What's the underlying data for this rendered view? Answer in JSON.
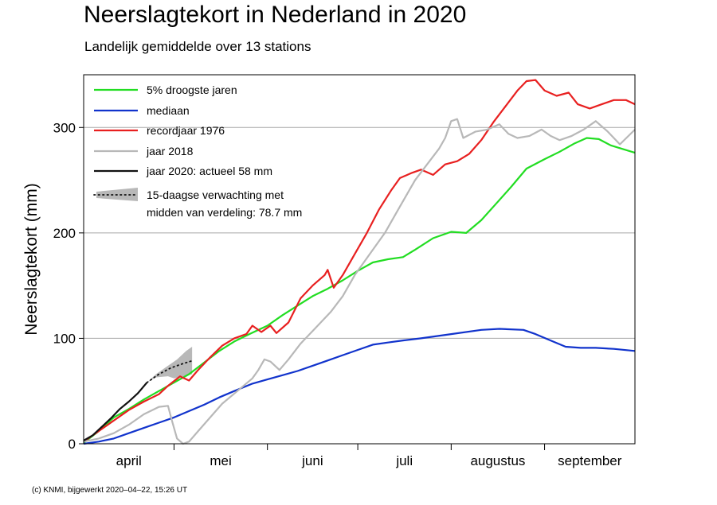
{
  "title": "Neerslagtekort in Nederland in 2020",
  "subtitle": "Landelijk gemiddelde over 13 stations",
  "credit": "(c) KNMI, bijgewerkt 2020–04–22, 15:26 UT",
  "chart_data": {
    "type": "line",
    "ylabel": "Neerslagtekort (mm)",
    "xlabel": "",
    "xlim": [
      0,
      183
    ],
    "ylim": [
      0,
      350
    ],
    "yticks": [
      0,
      100,
      200,
      300
    ],
    "month_labels": [
      {
        "label": "april",
        "center": 15
      },
      {
        "label": "mei",
        "center": 45.5
      },
      {
        "label": "juni",
        "center": 76
      },
      {
        "label": "juli",
        "center": 106.5
      },
      {
        "label": "augustus",
        "center": 137.5
      },
      {
        "label": "september",
        "center": 168
      }
    ],
    "month_boundaries": [
      30,
      61,
      91,
      122,
      153
    ],
    "grid": true,
    "legend_position": "top-left",
    "series": [
      {
        "name": "5% droogste jaren",
        "color": "#22dd22",
        "points": [
          [
            0,
            1
          ],
          [
            5,
            12
          ],
          [
            10,
            25
          ],
          [
            15,
            33
          ],
          [
            20,
            42
          ],
          [
            25,
            50
          ],
          [
            30,
            58
          ],
          [
            35,
            66
          ],
          [
            40,
            77
          ],
          [
            45,
            88
          ],
          [
            50,
            97
          ],
          [
            55,
            104
          ],
          [
            61,
            112
          ],
          [
            66,
            122
          ],
          [
            71,
            131
          ],
          [
            76,
            140
          ],
          [
            81,
            147
          ],
          [
            86,
            155
          ],
          [
            91,
            164
          ],
          [
            96,
            172
          ],
          [
            101,
            175
          ],
          [
            106,
            177
          ],
          [
            110,
            184
          ],
          [
            116,
            195
          ],
          [
            122,
            201
          ],
          [
            127,
            200
          ],
          [
            132,
            212
          ],
          [
            137,
            228
          ],
          [
            142,
            244
          ],
          [
            147,
            261
          ],
          [
            153,
            270
          ],
          [
            158,
            277
          ],
          [
            163,
            285
          ],
          [
            167,
            290
          ],
          [
            171,
            289
          ],
          [
            175,
            283
          ],
          [
            183,
            276
          ]
        ]
      },
      {
        "name": "mediaan",
        "color": "#1133cc",
        "points": [
          [
            0,
            0
          ],
          [
            5,
            2
          ],
          [
            10,
            5
          ],
          [
            15,
            10
          ],
          [
            20,
            15
          ],
          [
            25,
            20
          ],
          [
            30,
            25
          ],
          [
            35,
            31
          ],
          [
            40,
            37
          ],
          [
            45,
            44
          ],
          [
            50,
            50
          ],
          [
            56,
            57
          ],
          [
            61,
            61
          ],
          [
            66,
            65
          ],
          [
            71,
            69
          ],
          [
            76,
            74
          ],
          [
            81,
            79
          ],
          [
            86,
            84
          ],
          [
            91,
            89
          ],
          [
            96,
            94
          ],
          [
            101,
            96
          ],
          [
            106,
            98
          ],
          [
            112,
            100
          ],
          [
            122,
            104
          ],
          [
            132,
            108
          ],
          [
            138,
            109
          ],
          [
            146,
            108
          ],
          [
            150,
            104
          ],
          [
            155,
            98
          ],
          [
            160,
            92
          ],
          [
            165,
            91
          ],
          [
            170,
            91
          ],
          [
            176,
            90
          ],
          [
            183,
            88
          ]
        ]
      },
      {
        "name": "recordjaar 1976",
        "color": "#e82020",
        "points": [
          [
            0,
            2
          ],
          [
            5,
            12
          ],
          [
            10,
            22
          ],
          [
            15,
            32
          ],
          [
            20,
            40
          ],
          [
            25,
            47
          ],
          [
            28,
            55
          ],
          [
            32,
            64
          ],
          [
            35,
            60
          ],
          [
            38,
            70
          ],
          [
            42,
            82
          ],
          [
            46,
            93
          ],
          [
            50,
            100
          ],
          [
            54,
            104
          ],
          [
            56,
            112
          ],
          [
            59,
            106
          ],
          [
            62,
            112
          ],
          [
            64,
            105
          ],
          [
            68,
            115
          ],
          [
            72,
            138
          ],
          [
            76,
            150
          ],
          [
            80,
            160
          ],
          [
            81,
            165
          ],
          [
            83,
            148
          ],
          [
            86,
            160
          ],
          [
            90,
            180
          ],
          [
            94,
            200
          ],
          [
            98,
            222
          ],
          [
            102,
            240
          ],
          [
            105,
            252
          ],
          [
            109,
            257
          ],
          [
            112,
            260
          ],
          [
            116,
            255
          ],
          [
            120,
            265
          ],
          [
            124,
            268
          ],
          [
            128,
            275
          ],
          [
            132,
            288
          ],
          [
            136,
            305
          ],
          [
            140,
            320
          ],
          [
            144,
            335
          ],
          [
            147,
            344
          ],
          [
            150,
            345
          ],
          [
            153,
            335
          ],
          [
            157,
            330
          ],
          [
            161,
            333
          ],
          [
            164,
            322
          ],
          [
            168,
            318
          ],
          [
            172,
            322
          ],
          [
            176,
            326
          ],
          [
            180,
            326
          ],
          [
            183,
            322
          ]
        ]
      },
      {
        "name": "jaar 2018",
        "color": "#b8b8b8",
        "points": [
          [
            0,
            2
          ],
          [
            5,
            5
          ],
          [
            10,
            10
          ],
          [
            15,
            18
          ],
          [
            20,
            28
          ],
          [
            25,
            35
          ],
          [
            28,
            36
          ],
          [
            29,
            25
          ],
          [
            31,
            5
          ],
          [
            33,
            0
          ],
          [
            35,
            2
          ],
          [
            38,
            12
          ],
          [
            42,
            25
          ],
          [
            46,
            38
          ],
          [
            51,
            50
          ],
          [
            56,
            62
          ],
          [
            58,
            70
          ],
          [
            60,
            80
          ],
          [
            62,
            78
          ],
          [
            65,
            70
          ],
          [
            68,
            80
          ],
          [
            72,
            95
          ],
          [
            77,
            110
          ],
          [
            82,
            125
          ],
          [
            86,
            140
          ],
          [
            90,
            160
          ],
          [
            95,
            180
          ],
          [
            100,
            200
          ],
          [
            105,
            225
          ],
          [
            110,
            250
          ],
          [
            114,
            265
          ],
          [
            118,
            280
          ],
          [
            120,
            290
          ],
          [
            122,
            306
          ],
          [
            124,
            308
          ],
          [
            126,
            290
          ],
          [
            130,
            296
          ],
          [
            134,
            298
          ],
          [
            138,
            303
          ],
          [
            141,
            294
          ],
          [
            144,
            290
          ],
          [
            148,
            292
          ],
          [
            152,
            298
          ],
          [
            155,
            292
          ],
          [
            158,
            288
          ],
          [
            162,
            292
          ],
          [
            166,
            298
          ],
          [
            170,
            306
          ],
          [
            174,
            296
          ],
          [
            178,
            284
          ],
          [
            183,
            298
          ]
        ]
      },
      {
        "name": "jaar 2020: actueel 58 mm",
        "color": "#111111",
        "points": [
          [
            0,
            3
          ],
          [
            3,
            8
          ],
          [
            6,
            16
          ],
          [
            9,
            24
          ],
          [
            12,
            33
          ],
          [
            15,
            40
          ],
          [
            18,
            48
          ],
          [
            21,
            58
          ]
        ]
      }
    ],
    "forecast": {
      "name": "15-daagse verwachting met",
      "name_line2": "midden van verdeling: 78.7 mm",
      "median": [
        [
          21,
          58
        ],
        [
          25,
          66
        ],
        [
          29,
          72
        ],
        [
          33,
          76
        ],
        [
          36,
          78.7
        ]
      ],
      "lower": [
        [
          21,
          58
        ],
        [
          24,
          63
        ],
        [
          28,
          64
        ],
        [
          30,
          62
        ],
        [
          33,
          64
        ],
        [
          36,
          66
        ]
      ],
      "upper": [
        [
          21,
          58
        ],
        [
          24,
          66
        ],
        [
          28,
          74
        ],
        [
          31,
          80
        ],
        [
          34,
          88
        ],
        [
          36,
          92
        ]
      ]
    }
  }
}
